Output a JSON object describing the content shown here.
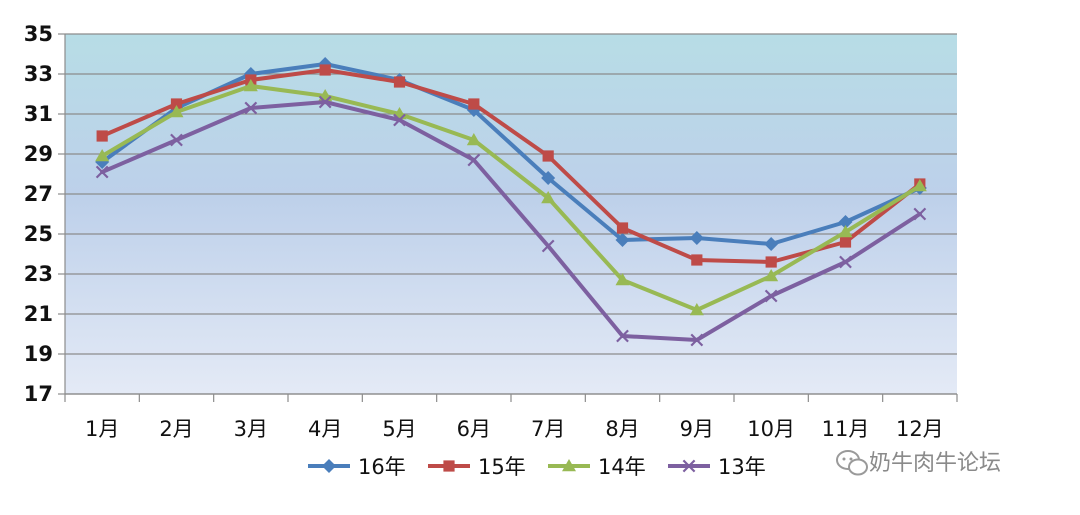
{
  "chart_data": {
    "type": "line",
    "title": "",
    "xlabel": "",
    "ylabel": "",
    "categories": [
      "1月",
      "2月",
      "3月",
      "4月",
      "5月",
      "6月",
      "7月",
      "8月",
      "9月",
      "10月",
      "11月",
      "12月"
    ],
    "ylim": [
      17,
      35
    ],
    "yticks": [
      17,
      19,
      21,
      23,
      25,
      27,
      29,
      31,
      33,
      35
    ],
    "grid": true,
    "legend": "bottom",
    "series": [
      {
        "name": "16年",
        "color": "#4a7ebb",
        "marker": "diamond",
        "values": [
          28.6,
          31.3,
          33.0,
          33.5,
          32.7,
          31.2,
          27.8,
          24.7,
          24.8,
          24.5,
          25.6,
          27.3
        ]
      },
      {
        "name": "15年",
        "color": "#be4b48",
        "marker": "square",
        "values": [
          29.9,
          31.5,
          32.7,
          33.2,
          32.6,
          31.5,
          28.9,
          25.3,
          23.7,
          23.6,
          24.6,
          27.5
        ]
      },
      {
        "name": "14年",
        "color": "#98b954",
        "marker": "triangle",
        "values": [
          28.9,
          31.1,
          32.4,
          31.9,
          31.0,
          29.7,
          26.8,
          22.7,
          21.2,
          22.9,
          25.1,
          27.4
        ]
      },
      {
        "name": "13年",
        "color": "#7d60a0",
        "marker": "x",
        "values": [
          28.1,
          29.7,
          31.3,
          31.6,
          30.7,
          28.7,
          24.4,
          19.9,
          19.7,
          21.9,
          23.6,
          26.0
        ]
      }
    ]
  },
  "watermark": {
    "text": "奶牛肉牛论坛",
    "icon": "wechat-icon"
  }
}
